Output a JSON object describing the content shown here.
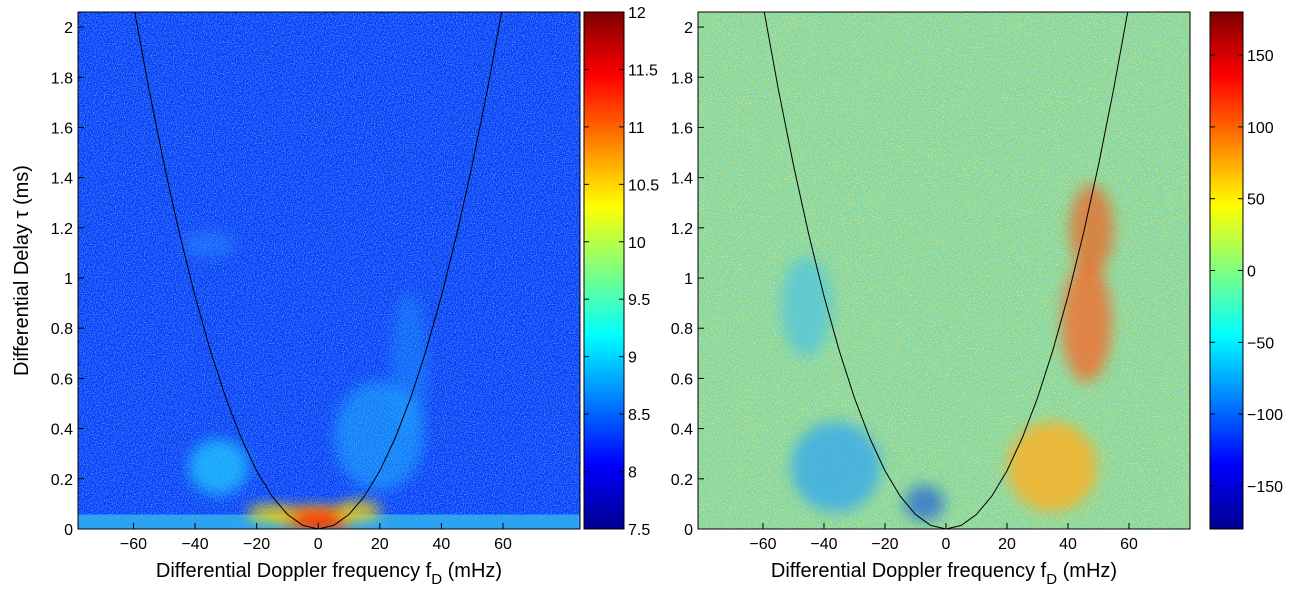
{
  "chart_data": [
    {
      "type": "heatmap",
      "colormap": "jet",
      "ylabel": "Differential Delay τ (ms)",
      "xlabel": {
        "text": "Differential Doppler frequency f",
        "sub": "D",
        "after": " (mHz)"
      },
      "xlim": [
        -78,
        85
      ],
      "ylim": [
        0,
        2.06
      ],
      "xticks": [
        {
          "value": -60,
          "label": "−60"
        },
        {
          "value": -40,
          "label": "−40"
        },
        {
          "value": -20,
          "label": "−20"
        },
        0,
        20,
        40,
        60
      ],
      "yticks": [
        0,
        0.2,
        0.4,
        0.6,
        0.8,
        1,
        1.2,
        1.4,
        1.6,
        1.8,
        2
      ],
      "curve": {
        "color": "#000000",
        "x": [
          -60,
          -55,
          -50,
          -45,
          -40,
          -35,
          -30,
          -25,
          -20,
          -15,
          -10,
          -5,
          0,
          5,
          10,
          15,
          20,
          25,
          30,
          35,
          40,
          45,
          50,
          55,
          60
        ],
        "values": [
          2.088,
          1.7545,
          1.45,
          1.1745,
          0.928,
          0.7105,
          0.522,
          0.3625,
          0.232,
          0.1305,
          0.058,
          0.0145,
          0,
          0.0145,
          0.058,
          0.1305,
          0.232,
          0.3625,
          0.522,
          0.7105,
          0.928,
          1.1745,
          1.45,
          1.7545,
          2.088
        ]
      },
      "colorbar": {
        "lim": [
          7.5,
          12
        ],
        "ticks": [
          7.5,
          8,
          8.5,
          9,
          9.5,
          10,
          10.5,
          11,
          11.5,
          12
        ]
      }
    },
    {
      "type": "heatmap",
      "colormap": "jet",
      "xlabel": {
        "text": "Differential Doppler frequency f",
        "sub": "D",
        "after": " (mHz)"
      },
      "xlim": [
        -81.3,
        80
      ],
      "ylim": [
        0,
        2.06
      ],
      "xticks": [
        {
          "value": -60,
          "label": "−60"
        },
        {
          "value": -40,
          "label": "−40"
        },
        {
          "value": -20,
          "label": "−20"
        },
        0,
        20,
        40,
        60
      ],
      "yticks": [
        0,
        0.2,
        0.4,
        0.6,
        0.8,
        1,
        1.2,
        1.4,
        1.6,
        1.8,
        2
      ],
      "curve": {
        "color": "#000000",
        "x": [
          -60,
          -55,
          -50,
          -45,
          -40,
          -35,
          -30,
          -25,
          -20,
          -15,
          -10,
          -5,
          0,
          5,
          10,
          15,
          20,
          25,
          30,
          35,
          40,
          45,
          50,
          55,
          60
        ],
        "values": [
          2.088,
          1.7545,
          1.45,
          1.1745,
          0.928,
          0.7105,
          0.522,
          0.3625,
          0.232,
          0.1305,
          0.058,
          0.0145,
          0,
          0.0145,
          0.058,
          0.1305,
          0.232,
          0.3625,
          0.522,
          0.7105,
          0.928,
          1.1745,
          1.45,
          1.7545,
          2.088
        ]
      },
      "colorbar": {
        "lim": [
          -180,
          180
        ],
        "ticks": [
          {
            "value": -150,
            "label": "−150"
          },
          {
            "value": -100,
            "label": "−100"
          },
          {
            "value": -50,
            "label": "−50"
          },
          0,
          50,
          100,
          150
        ]
      }
    }
  ]
}
